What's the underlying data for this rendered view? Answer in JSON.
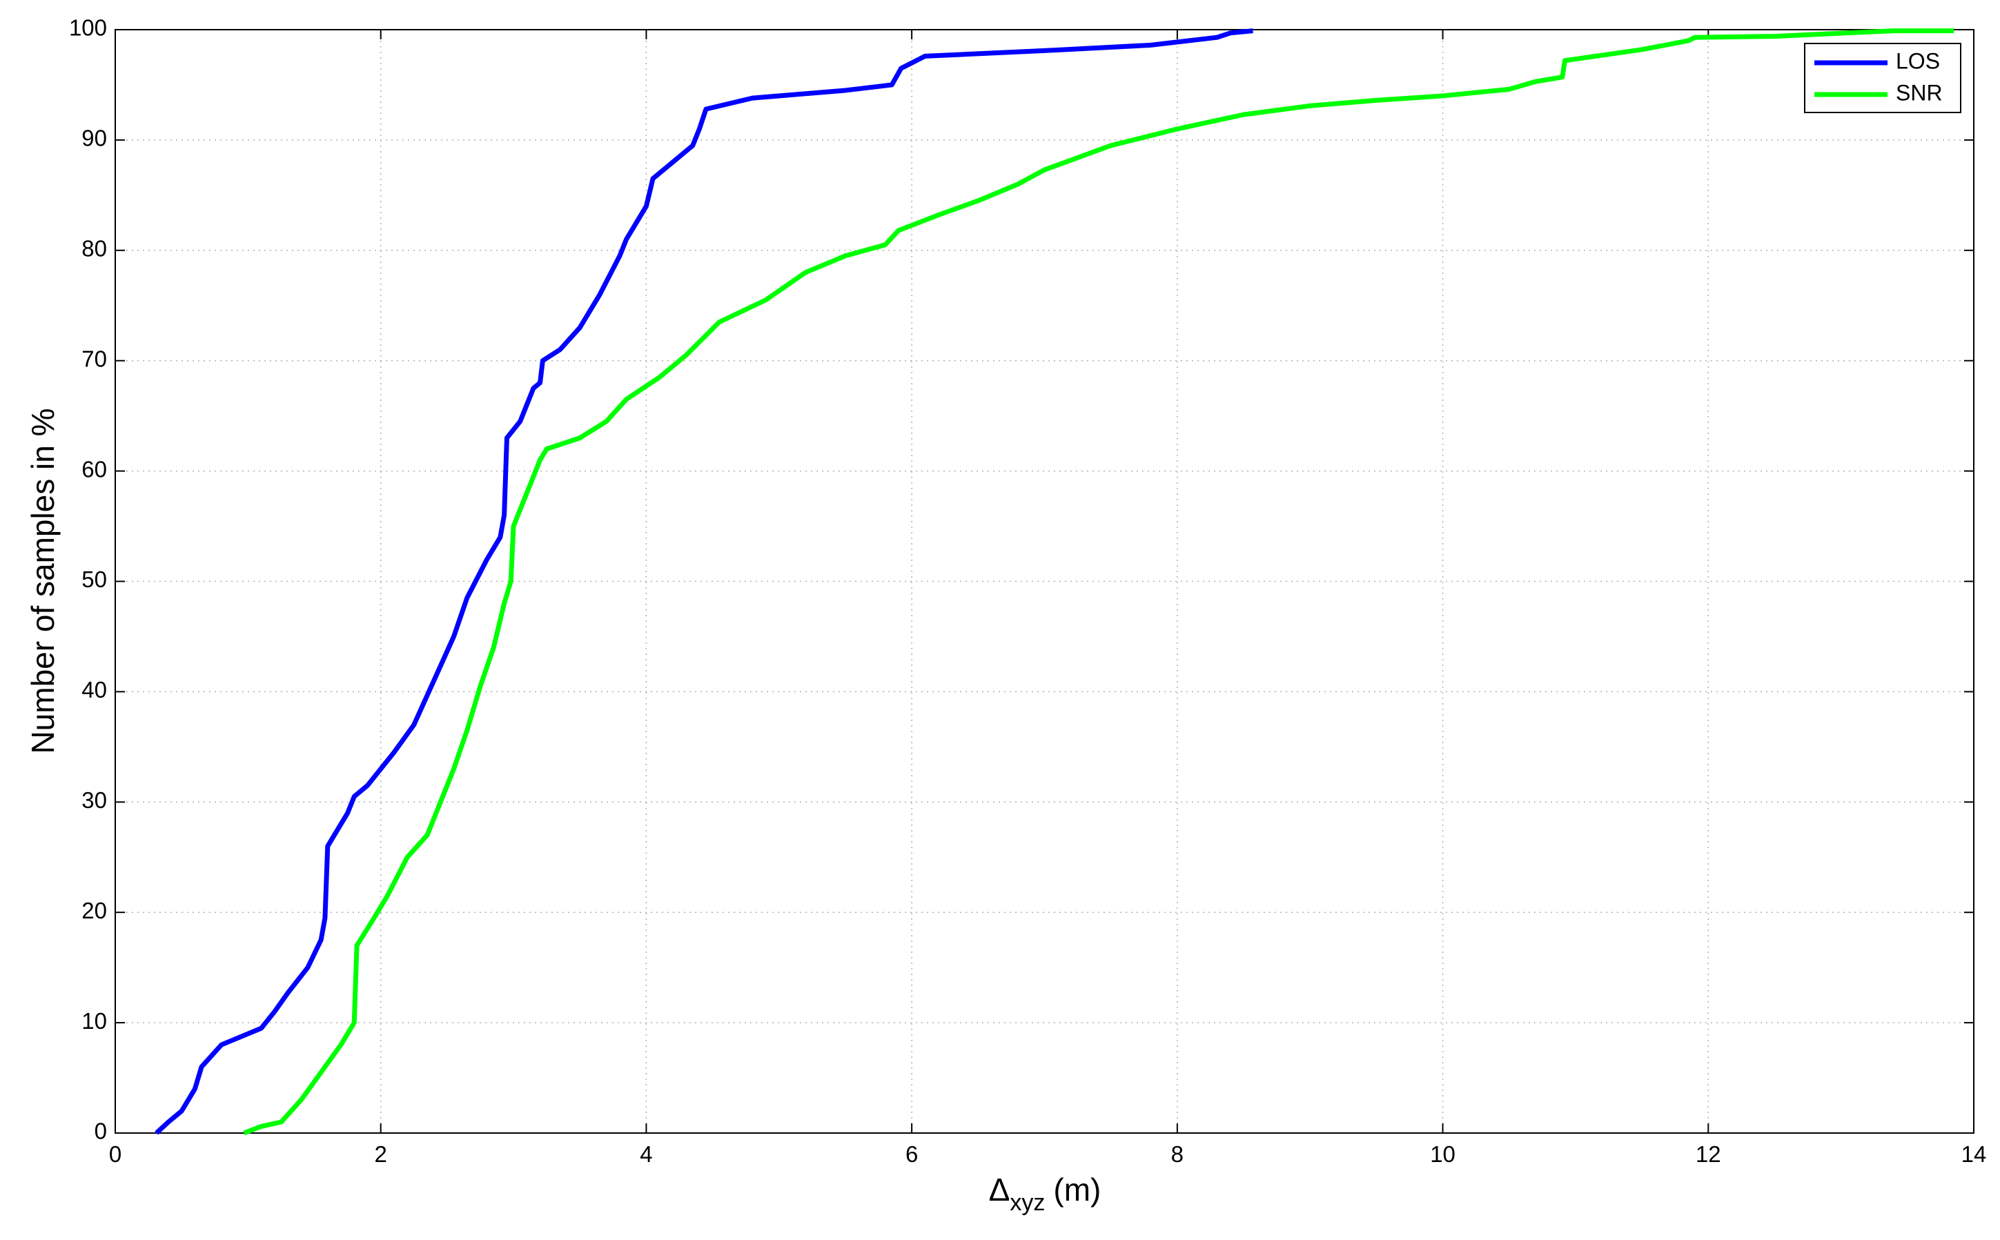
{
  "chart_data": {
    "type": "line",
    "x_label": {
      "symbol": "Δ",
      "subscript": "xyz",
      "unit": "(m)"
    },
    "y_label": "Number of samples in %",
    "xlim": [
      0,
      14
    ],
    "xticks": [
      0,
      2,
      4,
      6,
      8,
      10,
      12,
      14
    ],
    "ylim": [
      0,
      100
    ],
    "yticks": [
      0,
      10,
      20,
      30,
      40,
      50,
      60,
      70,
      80,
      90,
      100
    ],
    "grid": true,
    "legend": "top-right",
    "series": [
      {
        "name": "LOS",
        "color": "#0000ff",
        "x": [
          0.31,
          0.4,
          0.5,
          0.6,
          0.65,
          0.8,
          1.1,
          1.2,
          1.3,
          1.45,
          1.55,
          1.58,
          1.6,
          1.75,
          1.8,
          1.9,
          2.1,
          2.25,
          2.4,
          2.55,
          2.65,
          2.8,
          2.9,
          2.93,
          2.95,
          3.05,
          3.15,
          3.2,
          3.22,
          3.35,
          3.5,
          3.65,
          3.8,
          3.85,
          4.0,
          4.05,
          4.2,
          4.35,
          4.4,
          4.45,
          4.8,
          5.5,
          5.85,
          5.92,
          6.1,
          7.0,
          7.8,
          8.3,
          8.4,
          8.57
        ],
        "values": [
          0,
          1,
          2,
          4,
          6,
          8,
          9.5,
          11,
          12.7,
          15,
          17.5,
          19.5,
          26,
          29,
          30.5,
          31.5,
          34.5,
          37,
          41,
          45,
          48.5,
          52,
          54,
          56,
          63,
          64.5,
          67.5,
          68,
          70,
          71,
          73,
          76,
          79.5,
          81,
          84,
          86.5,
          88,
          89.5,
          91,
          92.8,
          93.8,
          94.5,
          95,
          96.5,
          97.6,
          98.1,
          98.6,
          99.3,
          99.7,
          99.9
        ]
      },
      {
        "name": "SNR",
        "color": "#00ff00",
        "x": [
          0.97,
          1.1,
          1.25,
          1.4,
          1.55,
          1.7,
          1.8,
          1.82,
          1.95,
          2.05,
          2.2,
          2.35,
          2.45,
          2.55,
          2.65,
          2.75,
          2.85,
          2.93,
          2.98,
          3.0,
          3.1,
          3.2,
          3.25,
          3.5,
          3.7,
          3.85,
          4.1,
          4.3,
          4.55,
          4.9,
          5.2,
          5.5,
          5.8,
          5.9,
          6.2,
          6.5,
          6.8,
          7.0,
          7.5,
          8.0,
          8.5,
          9.0,
          9.5,
          10.0,
          10.5,
          10.7,
          10.9,
          10.92,
          11.5,
          11.85,
          11.9,
          12.5,
          13.4,
          13.85
        ],
        "values": [
          0,
          0.6,
          1,
          3,
          5.5,
          8,
          10,
          17,
          19.5,
          21.5,
          25,
          27,
          30,
          33,
          36.5,
          40.5,
          44,
          48,
          50,
          55,
          58,
          61,
          62,
          63,
          64.5,
          66.5,
          68.5,
          70.5,
          73.5,
          75.5,
          78,
          79.5,
          80.5,
          81.8,
          83.2,
          84.5,
          86,
          87.3,
          89.5,
          91,
          92.3,
          93.1,
          93.6,
          94,
          94.6,
          95.3,
          95.7,
          97.2,
          98.2,
          99,
          99.3,
          99.4,
          99.9,
          99.9
        ]
      }
    ]
  }
}
